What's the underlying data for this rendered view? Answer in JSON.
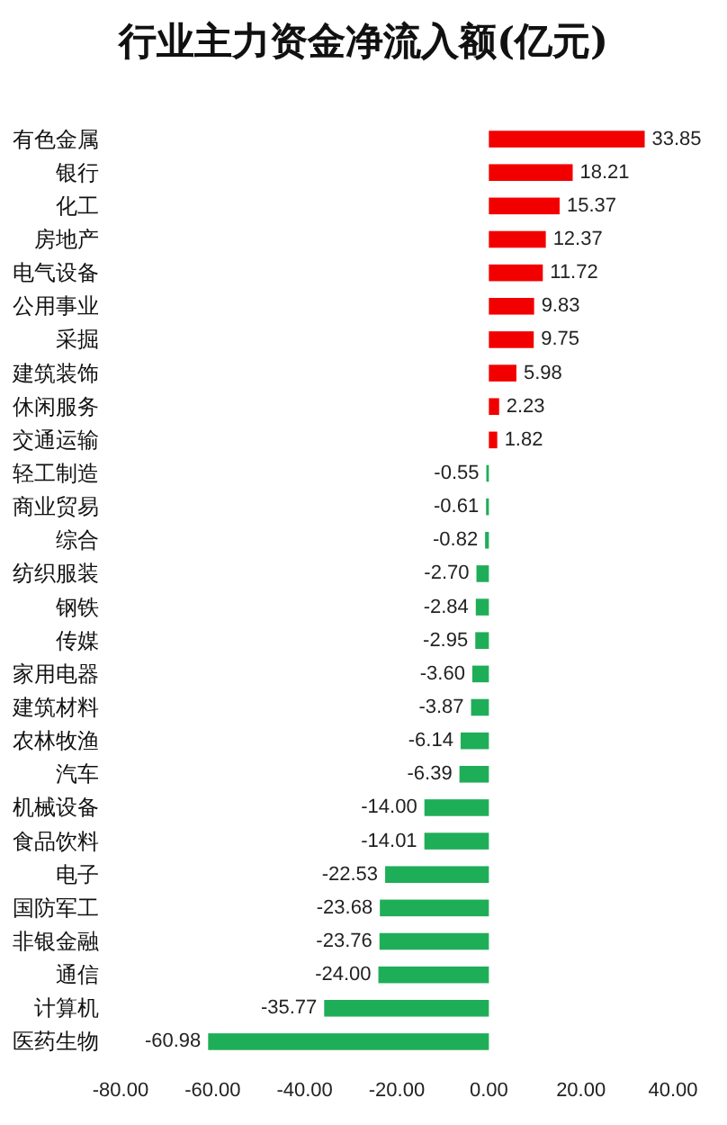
{
  "chart_data": {
    "type": "bar",
    "orientation": "horizontal",
    "title": "行业主力资金净流入额(亿元)",
    "categories": [
      "有色金属",
      "银行",
      "化工",
      "房地产",
      "电气设备",
      "公用事业",
      "采掘",
      "建筑装饰",
      "休闲服务",
      "交通运输",
      "轻工制造",
      "商业贸易",
      "综合",
      "纺织服装",
      "钢铁",
      "传媒",
      "家用电器",
      "建筑材料",
      "农林牧渔",
      "汽车",
      "机械设备",
      "食品饮料",
      "电子",
      "国防军工",
      "非银金融",
      "通信",
      "计算机",
      "医药生物"
    ],
    "values": [
      33.85,
      18.21,
      15.37,
      12.37,
      11.72,
      9.83,
      9.75,
      5.98,
      2.23,
      1.82,
      -0.55,
      -0.61,
      -0.82,
      -2.7,
      -2.84,
      -2.95,
      -3.6,
      -3.87,
      -6.14,
      -6.39,
      -14.0,
      -14.01,
      -22.53,
      -23.68,
      -23.76,
      -24.0,
      -35.77,
      -60.98
    ],
    "value_labels": [
      "33.85",
      "18.21",
      "15.37",
      "12.37",
      "11.72",
      "9.83",
      "9.75",
      "5.98",
      "2.23",
      "1.82",
      "-0.55",
      "-0.61",
      "-0.82",
      "-2.70",
      "-2.84",
      "-2.95",
      "-3.60",
      "-3.87",
      "-6.14",
      "-6.39",
      "-14.00",
      "-14.01",
      "-22.53",
      "-23.68",
      "-23.76",
      "-24.00",
      "-35.77",
      "-60.98"
    ],
    "colors": [
      "#f20000",
      "#f20000",
      "#f20000",
      "#f20000",
      "#f20000",
      "#f20000",
      "#f20000",
      "#f20000",
      "#f20000",
      "#f20000",
      "#1fae58",
      "#1fae58",
      "#1fae58",
      "#1fae58",
      "#1fae58",
      "#1fae58",
      "#1fae58",
      "#1fae58",
      "#1fae58",
      "#1fae58",
      "#1fae58",
      "#1fae58",
      "#1fae58",
      "#1fae58",
      "#1fae58",
      "#1fae58",
      "#1fae58",
      "#1fae58"
    ],
    "xlim": [
      -80,
      40
    ],
    "xticks": [
      {
        "value": -80,
        "label": "-80.00"
      },
      {
        "value": -60,
        "label": "-60.00"
      },
      {
        "value": -40,
        "label": "-40.00"
      },
      {
        "value": -20,
        "label": "-20.00"
      },
      {
        "value": 0,
        "label": "0.00"
      },
      {
        "value": 20,
        "label": "20.00"
      },
      {
        "value": 40,
        "label": "40.00"
      }
    ],
    "grid": false
  }
}
